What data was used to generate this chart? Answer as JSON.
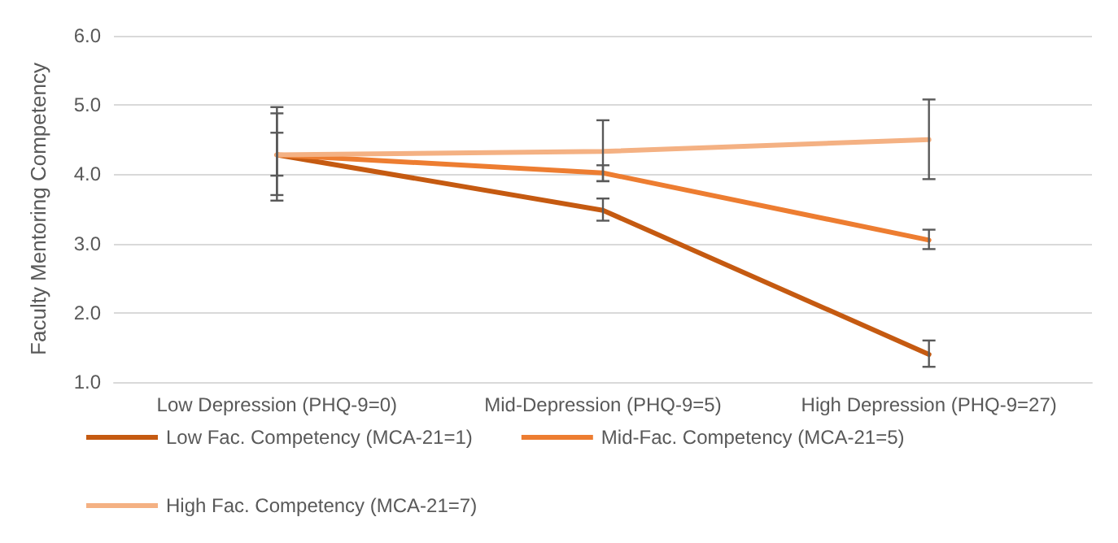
{
  "chart_data": {
    "type": "line",
    "ylabel": "Faculty Mentoring Competency",
    "categories": [
      "Low Depression (PHQ-9=0)",
      "Mid-Depression (PHQ-9=5)",
      "High Depression (PHQ-9=27)"
    ],
    "series": [
      {
        "name": "Low Fac. Competency (MCA-21=1)",
        "color": "#c55a11",
        "values": [
          4.28,
          3.48,
          1.4
        ],
        "errors": [
          [
            3.98,
            4.6
          ],
          [
            3.33,
            3.65
          ],
          [
            1.22,
            1.6
          ]
        ]
      },
      {
        "name": "Mid-Fac. Competency (MCA-21=5)",
        "color": "#ed7d31",
        "values": [
          4.28,
          4.02,
          3.05
        ],
        "errors": [
          [
            3.7,
            4.88
          ],
          [
            3.9,
            4.13
          ],
          [
            2.92,
            3.2
          ]
        ]
      },
      {
        "name": "High Fac. Competency (MCA-21=7)",
        "color": "#f4b183",
        "values": [
          4.28,
          4.33,
          4.5
        ],
        "errors": [
          [
            3.62,
            4.97
          ],
          [
            3.9,
            4.78
          ],
          [
            3.93,
            5.08
          ]
        ]
      }
    ],
    "ylim": [
      1,
      6
    ],
    "yticks": [
      {
        "value": 1,
        "label": "1.0"
      },
      {
        "value": 2,
        "label": "2.0"
      },
      {
        "value": 3,
        "label": "3.0"
      },
      {
        "value": 4,
        "label": "4.0"
      },
      {
        "value": 5,
        "label": "5.0"
      },
      {
        "value": 6,
        "label": "6.0"
      }
    ],
    "grid": "y",
    "legend": "bottom",
    "marker": "none",
    "line_style": "solid"
  }
}
